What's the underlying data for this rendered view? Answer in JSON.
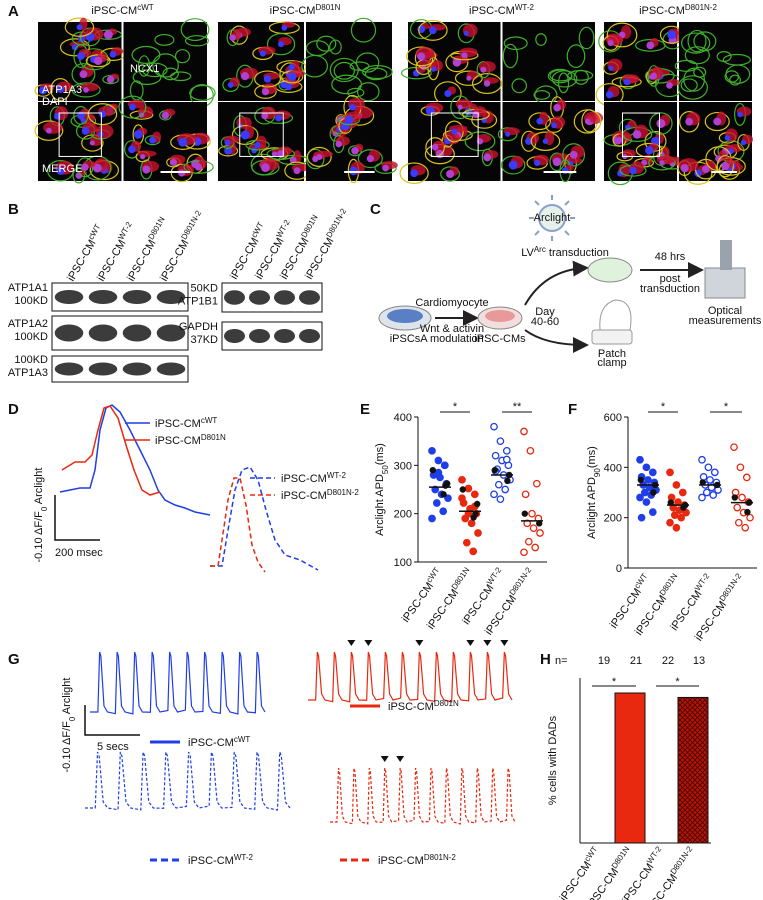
{
  "panel_A": {
    "letter": "A",
    "columns": [
      {
        "base": "iPSC-CM",
        "sup": "cWT"
      },
      {
        "base": "iPSC-CM",
        "sup": "D801N"
      },
      {
        "base": "iPSC-CM",
        "sup": "WT-2"
      },
      {
        "base": "iPSC-CM",
        "sup": "D801N-2"
      }
    ],
    "stain_1": "ATP1A3",
    "stain_2": "DAPI",
    "stain_3": "NCX1",
    "merge": "MERGE"
  },
  "panel_B": {
    "letter": "B",
    "lanes": [
      {
        "base": "iPSC-CM",
        "sup": "cWT"
      },
      {
        "base": "iPSC-CM",
        "sup": "WT-2"
      },
      {
        "base": "iPSC-CM",
        "sup": "D801N"
      },
      {
        "base": "iPSC-CM",
        "sup": "D801N-2"
      }
    ],
    "left_blots": [
      [
        "ATP1A1",
        "100KD"
      ],
      [
        "ATP1A2",
        "100KD"
      ],
      [
        "100KD",
        "ATP1A3"
      ]
    ],
    "right_lanes": [
      {
        "base": "iPSC-CM",
        "sup": "cWT"
      },
      {
        "base": "iPSC-CM",
        "sup": "WT-2"
      },
      {
        "base": "iPSC-CM",
        "sup": "D801N"
      },
      {
        "base": "iPSC-CM",
        "sup": "D801N-2"
      }
    ],
    "right_blots": [
      [
        "50KD",
        "ATP1B1"
      ],
      [
        "GAPDH",
        "37KD"
      ]
    ]
  },
  "panel_C": {
    "letter": "C",
    "virus": "Arclight",
    "transduction": {
      "base": "LV",
      "sup": "Arc",
      "post": " transduction"
    },
    "start": "iPSCs",
    "diff_top": "Cardiomyocyte",
    "diff_bottom": [
      "Wnt & activin",
      "A modulation"
    ],
    "cells": "iPSC-CMs",
    "day": [
      "Day",
      "40-60"
    ],
    "wait": [
      "48 hrs",
      "post",
      "transduction"
    ],
    "optical": [
      "Optical",
      "measurements"
    ],
    "patch": [
      "Patch",
      "clamp"
    ]
  },
  "panel_D": {
    "letter": "D",
    "legend_solid": [
      {
        "base": "iPSC-CM",
        "sup": "cWT"
      },
      {
        "base": "iPSC-CM",
        "sup": "D801N"
      }
    ],
    "legend_dashed": [
      {
        "base": "iPSC-CM",
        "sup": "WT-2"
      },
      {
        "base": "iPSC-CM",
        "sup": "D801N-2"
      }
    ],
    "scale_y": {
      "pre": "-0.10 ΔF/F",
      "sub": "0",
      "post": " Arclight"
    },
    "scale_x": "200 msec"
  },
  "panel_G": {
    "letter": "G",
    "legends": [
      {
        "base": "iPSC-CM",
        "sup": "cWT"
      },
      {
        "base": "iPSC-CM",
        "sup": "D801N"
      },
      {
        "base": "iPSC-CM",
        "sup": "WT-2"
      },
      {
        "base": "iPSC-CM",
        "sup": "D801N-2"
      }
    ],
    "scale_y": {
      "pre": "-0.10 ΔF/F",
      "sub": "0",
      "post": " Arclight"
    },
    "scale_x": "5 secs"
  },
  "chart_data": [
    {
      "type": "dot-plot",
      "letter": "E",
      "ylabel": {
        "pre": "Arclight APD",
        "sub": "50",
        "post": "(ms)"
      },
      "categories": [
        {
          "base": "iPSC-CM",
          "sup": "cWT"
        },
        {
          "base": "iPSC-CM",
          "sup": "D801N"
        },
        {
          "base": "iPSC-CM",
          "sup": "WT-2"
        },
        {
          "base": "iPSC-CM",
          "sup": "D801N-2"
        }
      ],
      "ylim": [
        100,
        400
      ],
      "yticks": [
        100,
        200,
        300,
        400
      ],
      "groups": [
        {
          "color": "#1f3ee8",
          "filled": true,
          "values": [
            330,
            310,
            300,
            280,
            275,
            262,
            250,
            240,
            232,
            222,
            205,
            190,
            285,
            300
          ],
          "black_values": [
            290,
            262,
            258,
            240
          ],
          "mean": 255
        },
        {
          "color": "#e8280f",
          "filled": true,
          "values": [
            270,
            252,
            240,
            222,
            210,
            200,
            190,
            180,
            160,
            140,
            122,
            232,
            200,
            215
          ],
          "black_values": [
            250,
            220,
            200,
            192
          ],
          "mean": 205
        },
        {
          "color": "#1f3ee8",
          "filled": false,
          "values": [
            380,
            350,
            330,
            320,
            310,
            300,
            292,
            280,
            270,
            260,
            250,
            240,
            230,
            312,
            288
          ],
          "black_values": [
            290,
            280,
            268
          ],
          "mean": 280
        },
        {
          "color": "#e8280f",
          "filled": false,
          "values": [
            370,
            330,
            262,
            240,
            200,
            190,
            180,
            170,
            160,
            142,
            130,
            120
          ],
          "black_values": [
            200,
            180
          ],
          "mean": 185
        }
      ],
      "significance": [
        "*",
        "**"
      ]
    },
    {
      "type": "dot-plot",
      "letter": "F",
      "ylabel": {
        "pre": "Arclight APD",
        "sub": "90",
        "post": "(ms)"
      },
      "categories": [
        {
          "base": "iPSC-CM",
          "sup": "cWT"
        },
        {
          "base": "iPSC-CM",
          "sup": "D801N"
        },
        {
          "base": "iPSC-CM",
          "sup": "WT-2"
        },
        {
          "base": "iPSC-CM",
          "sup": "D801N-2"
        }
      ],
      "ylim": [
        0,
        600
      ],
      "yticks": [
        0,
        200,
        400,
        600
      ],
      "groups": [
        {
          "color": "#1f3ee8",
          "filled": true,
          "values": [
            430,
            400,
            380,
            362,
            350,
            340,
            330,
            320,
            310,
            300,
            290,
            280,
            262,
            222,
            200
          ],
          "black_values": [
            350,
            330,
            300
          ],
          "mean": 330
        },
        {
          "color": "#e8280f",
          "filled": true,
          "values": [
            380,
            330,
            300,
            280,
            262,
            250,
            240,
            230,
            220,
            210,
            200,
            180,
            160
          ],
          "black_values": [
            260,
            250,
            240
          ],
          "mean": 250
        },
        {
          "color": "#1f3ee8",
          "filled": false,
          "values": [
            430,
            400,
            380,
            362,
            350,
            340,
            330,
            320,
            310,
            300,
            290,
            280
          ],
          "black_values": [
            340,
            330
          ],
          "mean": 330
        },
        {
          "color": "#e8280f",
          "filled": false,
          "values": [
            480,
            400,
            360,
            300,
            280,
            262,
            240,
            220,
            200,
            180,
            160
          ],
          "black_values": [
            280,
            260,
            222
          ],
          "mean": 260
        }
      ],
      "significance": [
        "*",
        "*"
      ]
    },
    {
      "type": "bar",
      "letter": "H",
      "ylabel": "% cells with DADs",
      "n_label": "n=",
      "n": [
        19,
        21,
        22,
        13
      ],
      "categories": [
        {
          "base": "iPSC-CM",
          "sup": "cWT"
        },
        {
          "base": "iPSC-CM",
          "sup": "D801N"
        },
        {
          "base": "iPSC-CM",
          "sup": "WT-2"
        },
        {
          "base": "iPSC-CM",
          "sup": "D801N-2"
        }
      ],
      "values": [
        0,
        23.7,
        0,
        23
      ],
      "colors": [
        "#1f3ee8",
        "#e8280f",
        "#1f3ee8",
        "#b3150a"
      ],
      "hatched": [
        false,
        false,
        false,
        true
      ],
      "significance": [
        "*",
        "*"
      ]
    }
  ]
}
